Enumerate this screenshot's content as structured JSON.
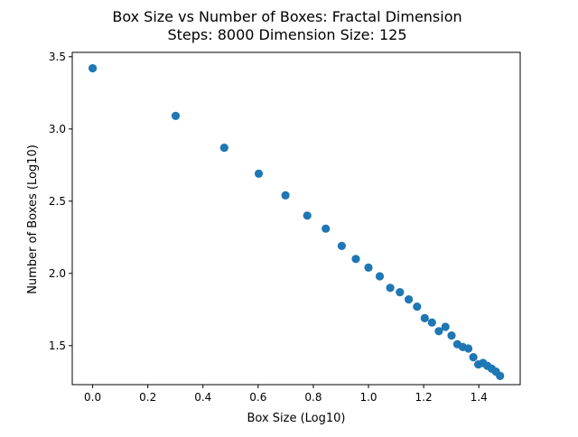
{
  "chart_data": {
    "type": "scatter",
    "title_line1": "Box Size vs Number of Boxes: Fractal Dimension",
    "title_line2": "Steps: 8000 Dimension Size: 125",
    "xlabel": "Box Size (Log10)",
    "ylabel": "Number of Boxes (Log10)",
    "xlim": [
      -0.074,
      1.55
    ],
    "ylim": [
      1.23,
      3.53
    ],
    "xticks": [
      0.0,
      0.2,
      0.4,
      0.6,
      0.8,
      1.0,
      1.2,
      1.4
    ],
    "xtick_labels": [
      "0.0",
      "0.2",
      "0.4",
      "0.6",
      "0.8",
      "1.0",
      "1.2",
      "1.4"
    ],
    "yticks": [
      1.5,
      2.0,
      2.5,
      3.0,
      3.5
    ],
    "ytick_labels": [
      "1.5",
      "2.0",
      "2.5",
      "3.0",
      "3.5"
    ],
    "grid": false,
    "marker_color": "#1f77b4",
    "x": [
      0.0,
      0.301,
      0.477,
      0.602,
      0.699,
      0.778,
      0.845,
      0.903,
      0.954,
      1.0,
      1.041,
      1.079,
      1.114,
      1.146,
      1.176,
      1.204,
      1.23,
      1.255,
      1.279,
      1.301,
      1.322,
      1.342,
      1.362,
      1.38,
      1.398,
      1.415,
      1.431,
      1.447,
      1.462,
      1.477
    ],
    "y": [
      3.42,
      3.09,
      2.87,
      2.69,
      2.54,
      2.4,
      2.31,
      2.19,
      2.1,
      2.04,
      1.98,
      1.9,
      1.87,
      1.82,
      1.77,
      1.69,
      1.66,
      1.6,
      1.63,
      1.57,
      1.51,
      1.49,
      1.48,
      1.42,
      1.37,
      1.38,
      1.36,
      1.34,
      1.32,
      1.29
    ]
  }
}
